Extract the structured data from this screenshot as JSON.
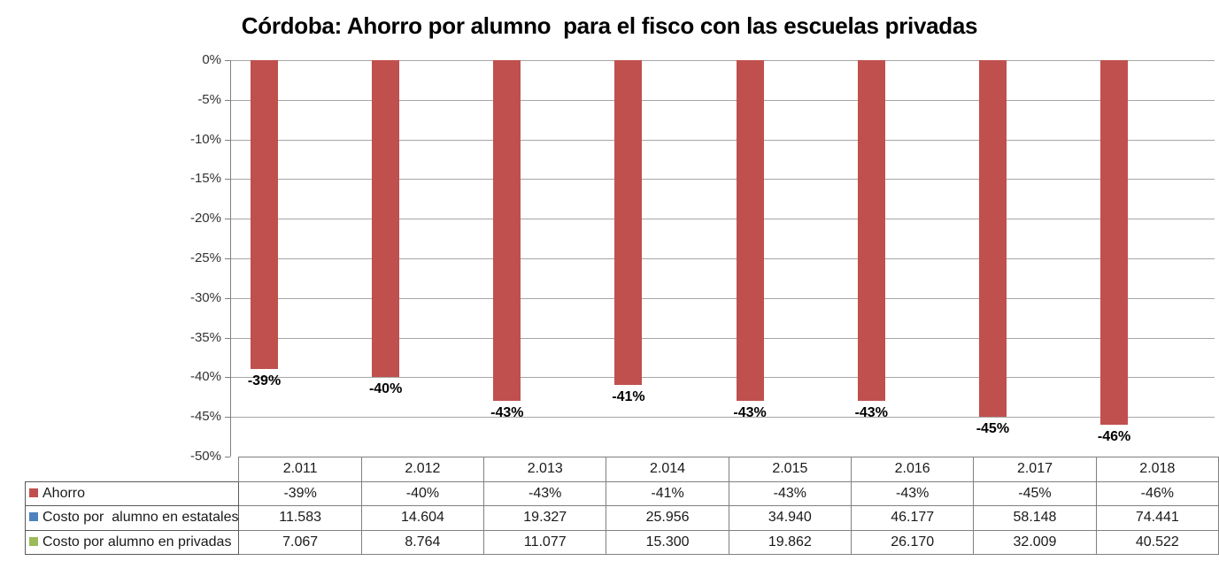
{
  "chart_data": {
    "type": "bar",
    "title": "Córdoba: Ahorro por alumno  para el fisco con las escuelas privadas",
    "categories": [
      "2.011",
      "2.012",
      "2.013",
      "2.014",
      "2.015",
      "2.016",
      "2.017",
      "2.018"
    ],
    "series": [
      {
        "name": "Ahorro",
        "color": "#C0504D",
        "plotted_as_bars": true,
        "values_pct": [
          -39,
          -40,
          -43,
          -41,
          -43,
          -43,
          -45,
          -46
        ],
        "labels": [
          "-39%",
          "-40%",
          "-43%",
          "-41%",
          "-43%",
          "-43%",
          "-45%",
          "-46%"
        ]
      },
      {
        "name": "Costo por  alumno en estatales",
        "color": "#4F81BD",
        "plotted_as_bars": false,
        "labels": [
          "11.583",
          "14.604",
          "19.327",
          "25.956",
          "34.940",
          "46.177",
          "58.148",
          "74.441"
        ]
      },
      {
        "name": "Costo por alumno en privadas",
        "color": "#9BBB59",
        "plotted_as_bars": false,
        "labels": [
          "7.067",
          "8.764",
          "11.077",
          "15.300",
          "19.862",
          "26.170",
          "32.009",
          "40.522"
        ]
      }
    ],
    "y_axis": {
      "min": -50,
      "max": 0,
      "step": 5,
      "tick_labels": [
        "0%",
        "-5%",
        "-10%",
        "-15%",
        "-20%",
        "-25%",
        "-30%",
        "-35%",
        "-40%",
        "-45%",
        "-50%"
      ]
    },
    "grid": true,
    "legend_position": "data-table-left",
    "colors": {
      "bar_fill": "#C0504D",
      "gridline": "#a6a6a6",
      "axis": "#808080",
      "table_border": "#808080",
      "legend_box_border": "#595959"
    }
  }
}
